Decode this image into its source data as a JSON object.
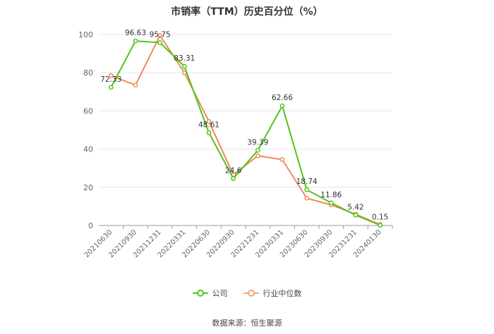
{
  "chart_data": {
    "type": "line",
    "title": "市销率（TTM）历史百分位（%）",
    "categories": [
      "20210630",
      "20210930",
      "20211231",
      "20220331",
      "20220630",
      "20220930",
      "20221231",
      "20230331",
      "20230630",
      "20230930",
      "20231231",
      "20240130"
    ],
    "series": [
      {
        "name": "公司",
        "values": [
          72.33,
          96.63,
          95.75,
          83.31,
          48.61,
          24.6,
          39.39,
          62.66,
          18.74,
          11.86,
          5.42,
          0.15
        ],
        "color": "#52c41a",
        "labeled": true
      },
      {
        "name": "行业中位数",
        "values": [
          78.5,
          73.5,
          99.5,
          80,
          54.5,
          26.5,
          36.5,
          34.5,
          14.3,
          10.8,
          5.9,
          0.5
        ],
        "color": "#f08a5d",
        "labeled": false
      }
    ],
    "ylim": [
      0,
      100
    ],
    "yticks": [
      0,
      20,
      40,
      60,
      80,
      100
    ],
    "grid": true,
    "legend_position": "bottom"
  },
  "footer": {
    "source": "数据来源：恒生聚源"
  }
}
